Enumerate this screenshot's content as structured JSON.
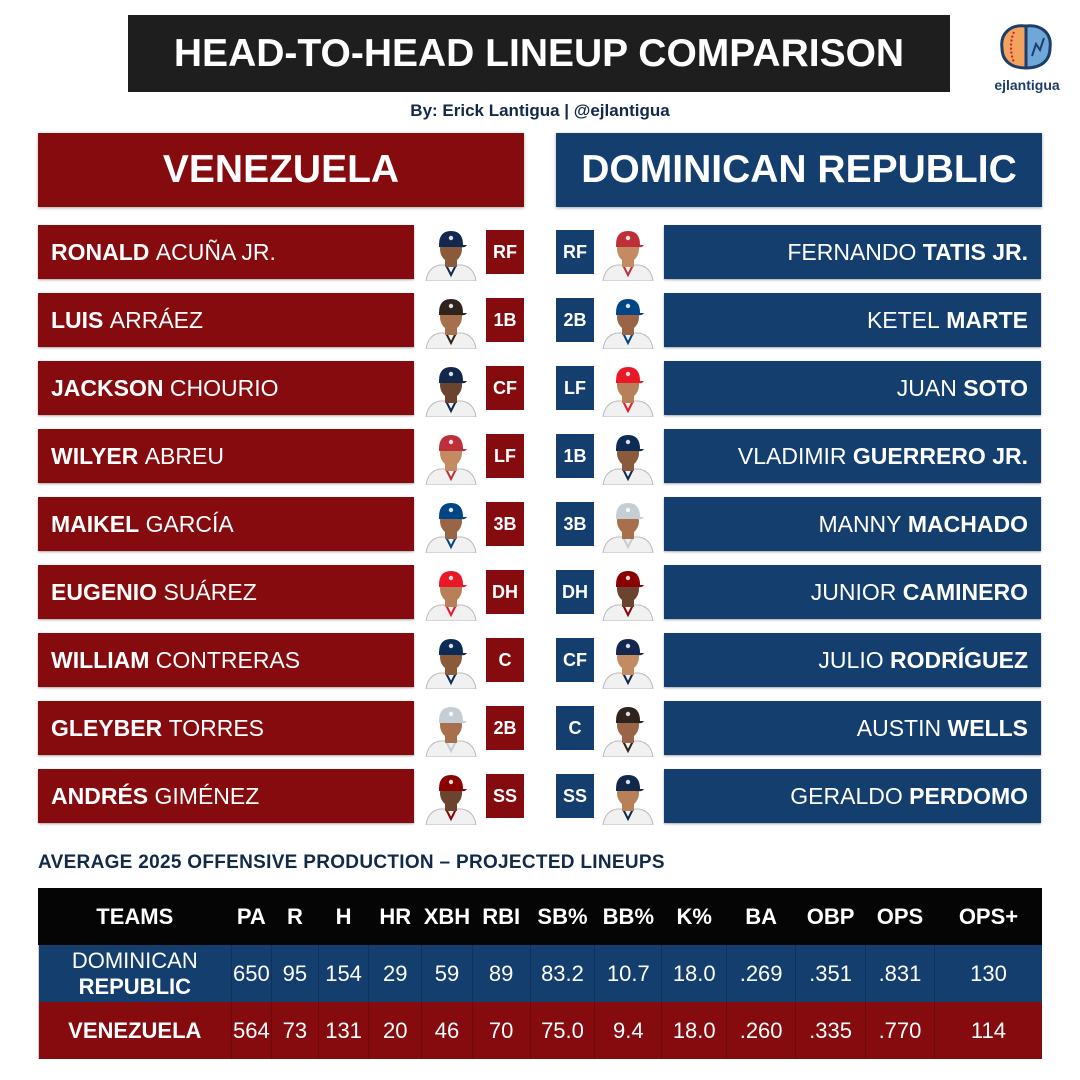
{
  "header": {
    "title": "HEAD-TO-HEAD LINEUP COMPARISON",
    "byline": "By: Erick Lantigua | @ejlantigua",
    "logo_text": "ejlantigua"
  },
  "colors": {
    "venezuela": "#860b0f",
    "dominican": "#133e6e",
    "table_header": "#050505"
  },
  "teams": {
    "left": "VENEZUELA",
    "right": "DOMINICAN REPUBLIC"
  },
  "venezuela": [
    {
      "first": "RONALD",
      "last": "ACUÑA JR.",
      "pos": "RF"
    },
    {
      "first": "LUIS",
      "last": "ARRÁEZ",
      "pos": "1B"
    },
    {
      "first": "JACKSON",
      "last": "CHOURIO",
      "pos": "CF"
    },
    {
      "first": "WILYER",
      "last": "ABREU",
      "pos": "LF"
    },
    {
      "first": "MAIKEL",
      "last": "GARCÍA",
      "pos": "3B"
    },
    {
      "first": "EUGENIO",
      "last": "SUÁREZ",
      "pos": "DH"
    },
    {
      "first": "WILLIAM",
      "last": "CONTRERAS",
      "pos": "C"
    },
    {
      "first": "GLEYBER",
      "last": "TORRES",
      "pos": "2B"
    },
    {
      "first": "ANDRÉS",
      "last": "GIMÉNEZ",
      "pos": "SS"
    }
  ],
  "dominican": [
    {
      "first": "FERNANDO",
      "last": "TATIS JR.",
      "pos": "RF"
    },
    {
      "first": "KETEL",
      "last": "MARTE",
      "pos": "2B"
    },
    {
      "first": "JUAN",
      "last": "SOTO",
      "pos": "LF"
    },
    {
      "first": "VLADIMIR",
      "last": "GUERRERO JR.",
      "pos": "1B"
    },
    {
      "first": "MANNY",
      "last": "MACHADO",
      "pos": "3B"
    },
    {
      "first": "JUNIOR",
      "last": "CAMINERO",
      "pos": "DH"
    },
    {
      "first": "JULIO",
      "last": "RODRÍGUEZ",
      "pos": "CF"
    },
    {
      "first": "AUSTIN",
      "last": "WELLS",
      "pos": "C"
    },
    {
      "first": "GERALDO",
      "last": "PERDOMO",
      "pos": "SS"
    }
  ],
  "stats": {
    "section_title": "AVERAGE 2025 OFFENSIVE PRODUCTION – PROJECTED LINEUPS",
    "headers": [
      "TEAMS",
      "PA",
      "R",
      "H",
      "HR",
      "XBH",
      "RBI",
      "SB%",
      "BB%",
      "K%",
      "BA",
      "OBP",
      "OPS",
      "OPS+"
    ],
    "rows": [
      {
        "team_a": "DOMINICAN ",
        "team_b": "REPUBLIC",
        "values": [
          "650",
          "95",
          "154",
          "29",
          "59",
          "89",
          "83.2",
          "10.7",
          "18.0",
          ".269",
          ".351",
          ".831",
          "130"
        ]
      },
      {
        "team_a": "",
        "team_b": "VENEZUELA",
        "values": [
          "564",
          "73",
          "131",
          "20",
          "46",
          "70",
          "75.0",
          "9.4",
          "18.0",
          ".260",
          ".335",
          ".770",
          "114"
        ]
      }
    ]
  }
}
